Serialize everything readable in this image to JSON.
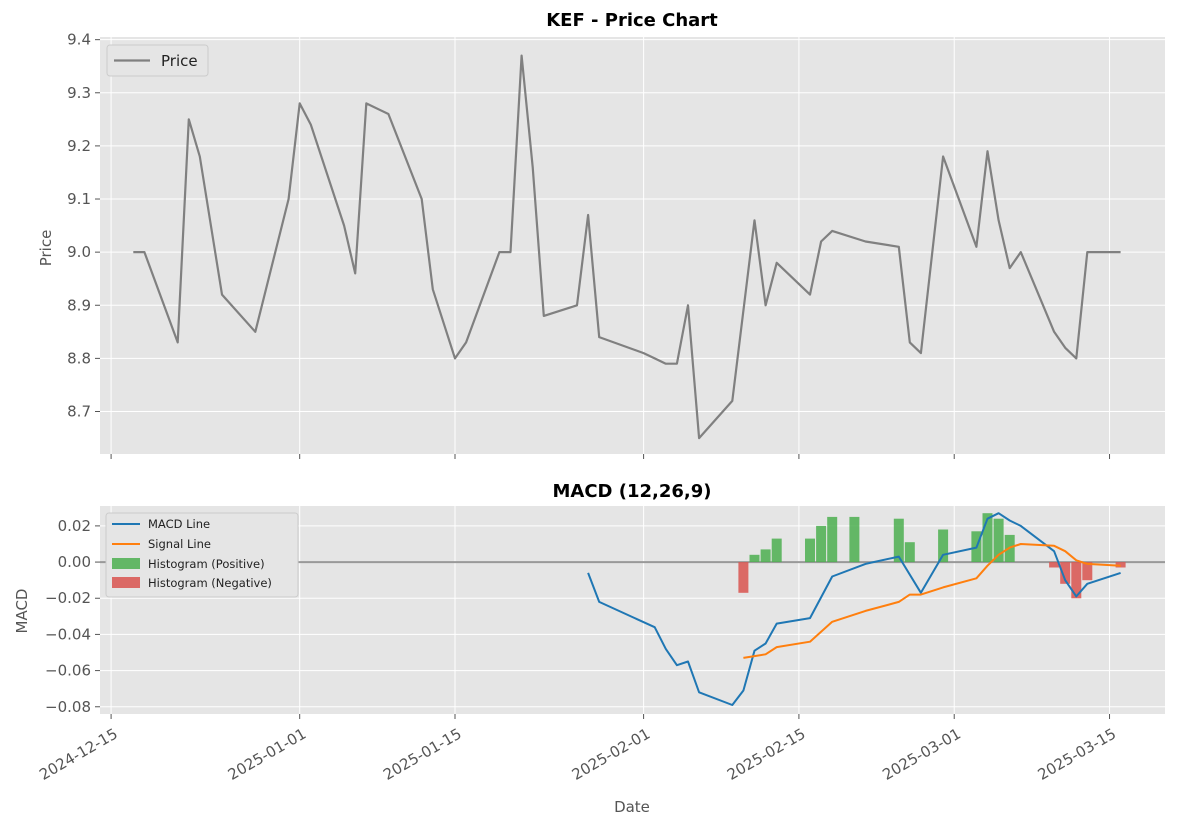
{
  "chart_data": [
    {
      "type": "line",
      "title": "KEF - Price Chart",
      "ylabel": "Price",
      "ylim": [
        8.62,
        9.405
      ],
      "yticks": [
        8.7,
        8.8,
        8.9,
        9.0,
        9.1,
        9.2,
        9.3,
        9.4
      ],
      "grid": true,
      "legend": "upper-left",
      "series": [
        {
          "name": "Price",
          "color": "#808080",
          "points": [
            [
              "2024-12-17",
              9.0
            ],
            [
              "2024-12-18",
              9.0
            ],
            [
              "2024-12-21",
              8.83
            ],
            [
              "2024-12-22",
              9.25
            ],
            [
              "2024-12-23",
              9.18
            ],
            [
              "2024-12-25",
              8.92
            ],
            [
              "2024-12-28",
              8.85
            ],
            [
              "2024-12-31",
              9.1
            ],
            [
              "2025-01-01",
              9.28
            ],
            [
              "2025-01-02",
              9.24
            ],
            [
              "2025-01-05",
              9.05
            ],
            [
              "2025-01-06",
              8.96
            ],
            [
              "2025-01-07",
              9.28
            ],
            [
              "2025-01-09",
              9.26
            ],
            [
              "2025-01-12",
              9.1
            ],
            [
              "2025-01-13",
              8.93
            ],
            [
              "2025-01-15",
              8.8
            ],
            [
              "2025-01-16",
              8.83
            ],
            [
              "2025-01-19",
              9.0
            ],
            [
              "2025-01-20",
              9.0
            ],
            [
              "2025-01-21",
              9.37
            ],
            [
              "2025-01-22",
              9.16
            ],
            [
              "2025-01-23",
              8.88
            ],
            [
              "2025-01-26",
              8.9
            ],
            [
              "2025-01-27",
              9.07
            ],
            [
              "2025-01-28",
              8.84
            ],
            [
              "2025-02-01",
              8.81
            ],
            [
              "2025-02-02",
              8.8
            ],
            [
              "2025-02-03",
              8.79
            ],
            [
              "2025-02-04",
              8.79
            ],
            [
              "2025-02-05",
              8.9
            ],
            [
              "2025-02-06",
              8.65
            ],
            [
              "2025-02-09",
              8.72
            ],
            [
              "2025-02-11",
              9.06
            ],
            [
              "2025-02-12",
              8.9
            ],
            [
              "2025-02-13",
              8.98
            ],
            [
              "2025-02-16",
              8.92
            ],
            [
              "2025-02-17",
              9.02
            ],
            [
              "2025-02-18",
              9.04
            ],
            [
              "2025-02-21",
              9.02
            ],
            [
              "2025-02-24",
              9.01
            ],
            [
              "2025-02-25",
              8.83
            ],
            [
              "2025-02-26",
              8.81
            ],
            [
              "2025-02-28",
              9.18
            ],
            [
              "2025-03-03",
              9.01
            ],
            [
              "2025-03-04",
              9.19
            ],
            [
              "2025-03-05",
              9.06
            ],
            [
              "2025-03-06",
              8.97
            ],
            [
              "2025-03-07",
              9.0
            ],
            [
              "2025-03-10",
              8.85
            ],
            [
              "2025-03-11",
              8.82
            ],
            [
              "2025-03-12",
              8.8
            ],
            [
              "2025-03-13",
              9.0
            ],
            [
              "2025-03-16",
              9.0
            ]
          ]
        }
      ]
    },
    {
      "type": "line",
      "title": "MACD (12,26,9)",
      "xlabel": "Date",
      "ylabel": "MACD",
      "ylim": [
        -0.084,
        0.031
      ],
      "yticks": [
        -0.08,
        -0.06,
        -0.04,
        -0.02,
        0.0,
        0.02
      ],
      "ytick_labels": [
        "−0.08",
        "−0.06",
        "−0.04",
        "−0.02",
        "0.00",
        "0.02"
      ],
      "xlim": [
        "2024-12-14",
        "2025-03-20"
      ],
      "xticks": [
        "2024-12-15",
        "2025-01-01",
        "2025-01-15",
        "2025-02-01",
        "2025-02-15",
        "2025-03-01",
        "2025-03-15"
      ],
      "zero_line": 0,
      "grid": true,
      "legend": "upper-left",
      "series": [
        {
          "name": "MACD Line",
          "color": "#1f77b4",
          "points": [
            [
              "2025-01-27",
              -0.006
            ],
            [
              "2025-01-28",
              -0.022
            ],
            [
              "2025-02-02",
              -0.036
            ],
            [
              "2025-02-03",
              -0.048
            ],
            [
              "2025-02-04",
              -0.057
            ],
            [
              "2025-02-05",
              -0.055
            ],
            [
              "2025-02-06",
              -0.072
            ],
            [
              "2025-02-09",
              -0.079
            ],
            [
              "2025-02-10",
              -0.071
            ],
            [
              "2025-02-11",
              -0.049
            ],
            [
              "2025-02-12",
              -0.045
            ],
            [
              "2025-02-13",
              -0.034
            ],
            [
              "2025-02-16",
              -0.031
            ],
            [
              "2025-02-18",
              -0.008
            ],
            [
              "2025-02-21",
              -0.001
            ],
            [
              "2025-02-24",
              0.003
            ],
            [
              "2025-02-26",
              -0.017
            ],
            [
              "2025-02-28",
              0.004
            ],
            [
              "2025-03-03",
              0.008
            ],
            [
              "2025-03-04",
              0.024
            ],
            [
              "2025-03-05",
              0.027
            ],
            [
              "2025-03-06",
              0.023
            ],
            [
              "2025-03-07",
              0.02
            ],
            [
              "2025-03-10",
              0.006
            ],
            [
              "2025-03-11",
              -0.01
            ],
            [
              "2025-03-12",
              -0.019
            ],
            [
              "2025-03-13",
              -0.012
            ],
            [
              "2025-03-16",
              -0.006
            ]
          ]
        },
        {
          "name": "Signal Line",
          "color": "#ff7f0e",
          "points": [
            [
              "2025-02-10",
              -0.053
            ],
            [
              "2025-02-11",
              -0.052
            ],
            [
              "2025-02-12",
              -0.051
            ],
            [
              "2025-02-13",
              -0.047
            ],
            [
              "2025-02-16",
              -0.044
            ],
            [
              "2025-02-18",
              -0.033
            ],
            [
              "2025-02-21",
              -0.027
            ],
            [
              "2025-02-24",
              -0.022
            ],
            [
              "2025-02-25",
              -0.018
            ],
            [
              "2025-02-26",
              -0.018
            ],
            [
              "2025-02-28",
              -0.014
            ],
            [
              "2025-03-03",
              -0.009
            ],
            [
              "2025-03-04",
              -0.002
            ],
            [
              "2025-03-05",
              0.004
            ],
            [
              "2025-03-06",
              0.008
            ],
            [
              "2025-03-07",
              0.01
            ],
            [
              "2025-03-10",
              0.009
            ],
            [
              "2025-03-11",
              0.006
            ],
            [
              "2025-03-12",
              0.001
            ],
            [
              "2025-03-13",
              -0.001
            ],
            [
              "2025-03-16",
              -0.002
            ]
          ]
        },
        {
          "name": "Histogram (Positive)",
          "type": "bar",
          "color": "#4caf50",
          "bars": [
            [
              "2025-02-11",
              0.004
            ],
            [
              "2025-02-12",
              0.007
            ],
            [
              "2025-02-13",
              0.013
            ],
            [
              "2025-02-16",
              0.013
            ],
            [
              "2025-02-17",
              0.02
            ],
            [
              "2025-02-18",
              0.025
            ],
            [
              "2025-02-20",
              0.025
            ],
            [
              "2025-02-24",
              0.024
            ],
            [
              "2025-02-25",
              0.011
            ],
            [
              "2025-02-28",
              0.018
            ],
            [
              "2025-03-03",
              0.017
            ],
            [
              "2025-03-04",
              0.027
            ],
            [
              "2025-03-05",
              0.024
            ],
            [
              "2025-03-06",
              0.015
            ]
          ]
        },
        {
          "name": "Histogram (Negative)",
          "type": "bar",
          "color": "#d9534f",
          "bars": [
            [
              "2025-02-10",
              -0.017
            ],
            [
              "2025-03-10",
              -0.003
            ],
            [
              "2025-03-11",
              -0.012
            ],
            [
              "2025-03-12",
              -0.02
            ],
            [
              "2025-03-13",
              -0.01
            ],
            [
              "2025-03-16",
              -0.003
            ]
          ]
        }
      ]
    }
  ]
}
